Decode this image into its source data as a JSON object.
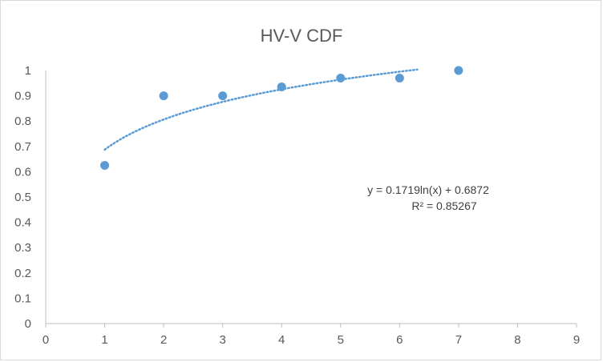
{
  "chart_data": {
    "type": "scatter",
    "title": "HV-V CDF",
    "xlabel": "",
    "ylabel": "",
    "xlim": [
      0,
      9
    ],
    "ylim": [
      0,
      1
    ],
    "x_ticks": [
      "0",
      "1",
      "2",
      "3",
      "4",
      "5",
      "6",
      "7",
      "8",
      "9"
    ],
    "y_ticks": [
      "0",
      "0.1",
      "0.2",
      "0.3",
      "0.4",
      "0.5",
      "0.6",
      "0.7",
      "0.8",
      "0.9",
      "1"
    ],
    "grid": false,
    "legend": "none",
    "series": [
      {
        "x": [
          1,
          2,
          3,
          4,
          5,
          6,
          7
        ],
        "y": [
          0.625,
          0.9,
          0.9,
          0.935,
          0.97,
          0.97,
          1.0
        ],
        "color": "#5b9bd5"
      }
    ],
    "trendline": {
      "type": "logarithmic",
      "a": 0.1719,
      "b": 0.6872,
      "x_range": [
        1,
        6.3
      ],
      "color": "#5b9bd5",
      "style": "dotted",
      "equation_label": "y = 0.1719ln(x) + 0.6872",
      "r2_label": "R² = 0.85267"
    }
  }
}
